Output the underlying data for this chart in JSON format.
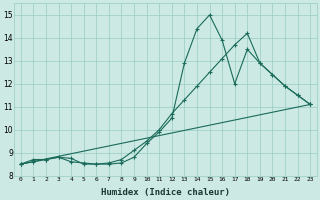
{
  "xlabel": "Humidex (Indice chaleur)",
  "ylabel": "",
  "background_color": "#cce9e4",
  "grid_color": "#99ccc5",
  "line_color": "#1a6b5a",
  "xlim": [
    -0.5,
    23.5
  ],
  "ylim": [
    8.0,
    15.5
  ],
  "yticks": [
    8,
    9,
    10,
    11,
    12,
    13,
    14,
    15
  ],
  "xticks": [
    0,
    1,
    2,
    3,
    4,
    5,
    6,
    7,
    8,
    9,
    10,
    11,
    12,
    13,
    14,
    15,
    16,
    17,
    18,
    19,
    20,
    21,
    22,
    23
  ],
  "series1_x": [
    0,
    1,
    2,
    3,
    4,
    5,
    6,
    7,
    8,
    9,
    10,
    11,
    12,
    13,
    14,
    15,
    16,
    17,
    18,
    19,
    20,
    21,
    22,
    23
  ],
  "series1_y": [
    8.5,
    8.7,
    8.7,
    8.8,
    8.75,
    8.5,
    8.5,
    8.5,
    8.55,
    8.8,
    9.4,
    9.9,
    10.5,
    12.9,
    14.4,
    15.0,
    13.9,
    12.0,
    13.5,
    12.9,
    12.4,
    11.9,
    11.5,
    11.1
  ],
  "series2_x": [
    0,
    1,
    2,
    3,
    4,
    5,
    6,
    7,
    8,
    9,
    10,
    11,
    12,
    13,
    14,
    15,
    16,
    17,
    18,
    19,
    20,
    21,
    22,
    23
  ],
  "series2_y": [
    8.5,
    8.6,
    8.7,
    8.8,
    8.6,
    8.55,
    8.5,
    8.55,
    8.7,
    9.1,
    9.5,
    10.0,
    10.7,
    11.3,
    11.9,
    12.5,
    13.1,
    13.7,
    14.2,
    12.9,
    12.4,
    11.9,
    11.5,
    11.1
  ],
  "series3_x": [
    0,
    23
  ],
  "series3_y": [
    8.5,
    11.1
  ]
}
